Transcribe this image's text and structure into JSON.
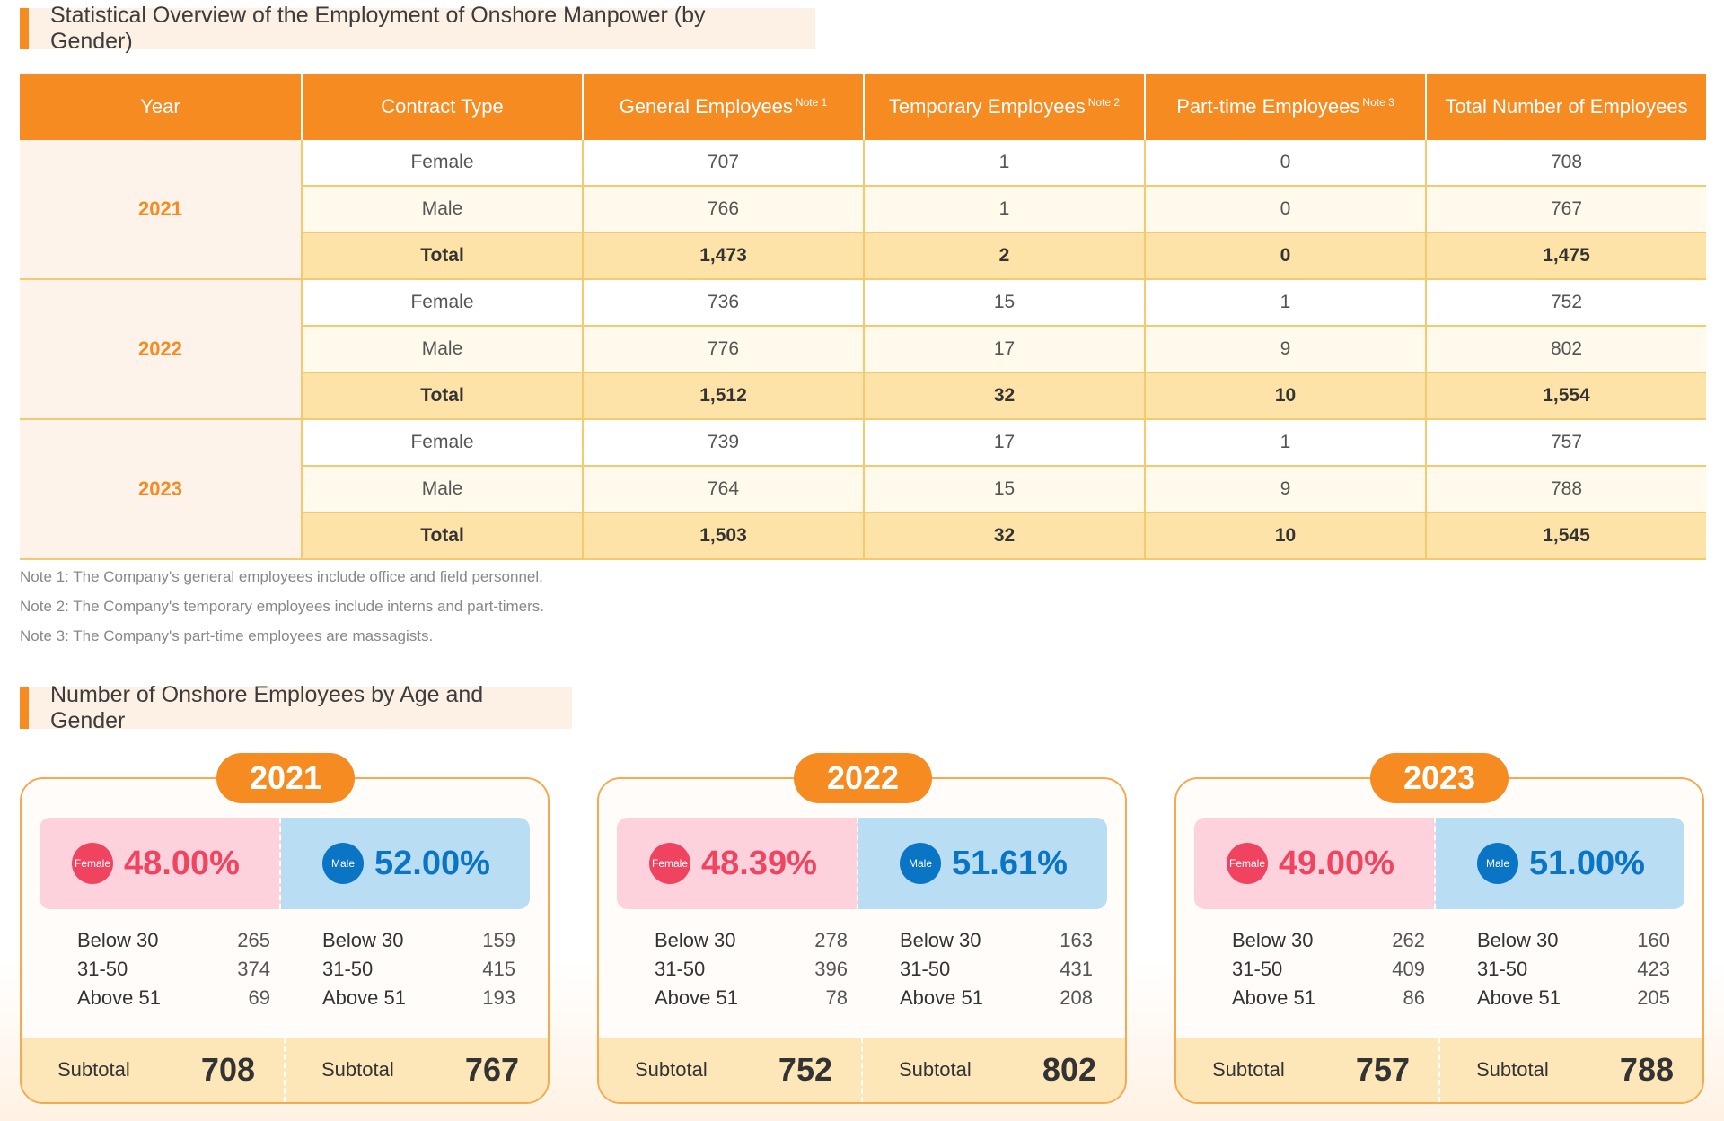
{
  "section1_title": "Statistical Overview of the Employment of Onshore Manpower (by Gender)",
  "table": {
    "headers": [
      {
        "label": "Year",
        "note": ""
      },
      {
        "label": "Contract Type",
        "note": ""
      },
      {
        "label": "General Employees",
        "note": "Note 1"
      },
      {
        "label": "Temporary Employees",
        "note": "Note 2"
      },
      {
        "label": "Part-time Employees",
        "note": "Note 3"
      },
      {
        "label": "Total Number of Employees",
        "note": ""
      }
    ],
    "years": [
      {
        "year": "2021",
        "rows": [
          {
            "type": "Female",
            "general": "707",
            "temporary": "1",
            "parttime": "0",
            "total": "708"
          },
          {
            "type": "Male",
            "general": "766",
            "temporary": "1",
            "parttime": "0",
            "total": "767"
          },
          {
            "type": "Total",
            "general": "1,473",
            "temporary": "2",
            "parttime": "0",
            "total": "1,475"
          }
        ]
      },
      {
        "year": "2022",
        "rows": [
          {
            "type": "Female",
            "general": "736",
            "temporary": "15",
            "parttime": "1",
            "total": "752"
          },
          {
            "type": "Male",
            "general": "776",
            "temporary": "17",
            "parttime": "9",
            "total": "802"
          },
          {
            "type": "Total",
            "general": "1,512",
            "temporary": "32",
            "parttime": "10",
            "total": "1,554"
          }
        ]
      },
      {
        "year": "2023",
        "rows": [
          {
            "type": "Female",
            "general": "739",
            "temporary": "17",
            "parttime": "1",
            "total": "757"
          },
          {
            "type": "Male",
            "general": "764",
            "temporary": "15",
            "parttime": "9",
            "total": "788"
          },
          {
            "type": "Total",
            "general": "1,503",
            "temporary": "32",
            "parttime": "10",
            "total": "1,545"
          }
        ]
      }
    ]
  },
  "notes": [
    "Note 1: The Company's general employees include office and field personnel.",
    "Note 2: The Company's temporary employees include interns and part-timers.",
    "Note 3: The Company's part-time employees are massagists."
  ],
  "section2_title": "Number of Onshore Employees by Age and Gender",
  "cards": [
    {
      "year": "2021",
      "female": {
        "badge": "Female",
        "pct": "48.00%",
        "ages": [
          [
            "Below 30",
            "265"
          ],
          [
            "31-50",
            "374"
          ],
          [
            "Above 51",
            "69"
          ]
        ],
        "subtotal_label": "Subtotal",
        "subtotal": "708"
      },
      "male": {
        "badge": "Male",
        "pct": "52.00%",
        "ages": [
          [
            "Below 30",
            "159"
          ],
          [
            "31-50",
            "415"
          ],
          [
            "Above 51",
            "193"
          ]
        ],
        "subtotal_label": "Subtotal",
        "subtotal": "767"
      }
    },
    {
      "year": "2022",
      "female": {
        "badge": "Female",
        "pct": "48.39%",
        "ages": [
          [
            "Below 30",
            "278"
          ],
          [
            "31-50",
            "396"
          ],
          [
            "Above 51",
            "78"
          ]
        ],
        "subtotal_label": "Subtotal",
        "subtotal": "752"
      },
      "male": {
        "badge": "Male",
        "pct": "51.61%",
        "ages": [
          [
            "Below 30",
            "163"
          ],
          [
            "31-50",
            "431"
          ],
          [
            "Above 51",
            "208"
          ]
        ],
        "subtotal_label": "Subtotal",
        "subtotal": "802"
      }
    },
    {
      "year": "2023",
      "female": {
        "badge": "Female",
        "pct": "49.00%",
        "ages": [
          [
            "Below 30",
            "262"
          ],
          [
            "31-50",
            "409"
          ],
          [
            "Above 51",
            "86"
          ]
        ],
        "subtotal_label": "Subtotal",
        "subtotal": "757"
      },
      "male": {
        "badge": "Male",
        "pct": "51.00%",
        "ages": [
          [
            "Below 30",
            "160"
          ],
          [
            "31-50",
            "423"
          ],
          [
            "Above 51",
            "205"
          ]
        ],
        "subtotal_label": "Subtotal",
        "subtotal": "788"
      }
    }
  ],
  "colors": {
    "accent": "#f68b22",
    "female": "#ef4560",
    "male": "#0a74c5"
  }
}
